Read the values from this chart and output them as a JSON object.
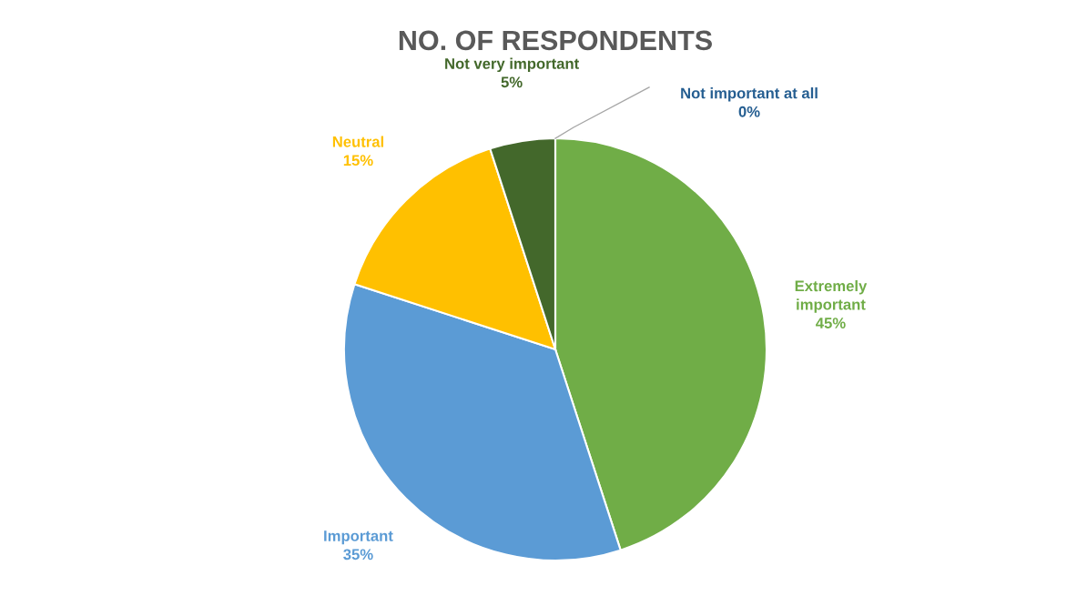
{
  "chart_data": {
    "type": "pie",
    "title": "NO. OF RESPONDENTS",
    "categories": [
      "Extremely important",
      "Important",
      "Neutral",
      "Not very important",
      "Not important at all"
    ],
    "values": [
      45,
      35,
      15,
      5,
      0
    ],
    "value_labels": [
      "45%",
      "35%",
      "15%",
      "5%",
      "0%"
    ],
    "colors": [
      "#70ad47",
      "#5b9bd5",
      "#ffc000",
      "#43682b",
      "#255e91"
    ],
    "legend": false
  }
}
